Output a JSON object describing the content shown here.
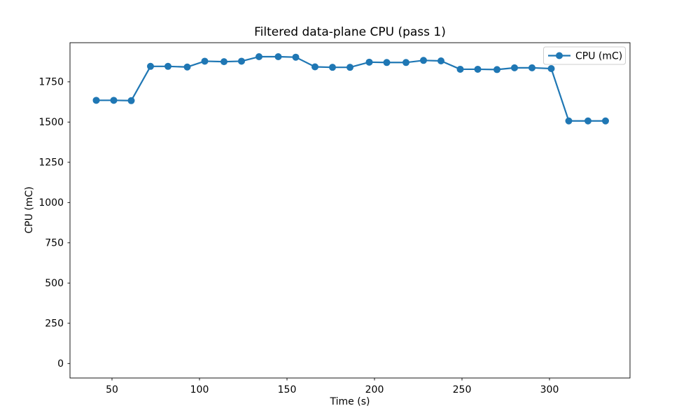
{
  "chart_data": {
    "type": "line",
    "title": "Filtered data-plane CPU (pass 1)",
    "xlabel": "Time (s)",
    "ylabel": "CPU (mC)",
    "xlim": [
      26,
      346
    ],
    "ylim": [
      -90,
      1993
    ],
    "xticks": [
      50,
      100,
      150,
      200,
      250,
      300
    ],
    "yticks": [
      0,
      250,
      500,
      750,
      1000,
      1250,
      1500,
      1750
    ],
    "grid": false,
    "legend": {
      "position": "upper right",
      "entries": [
        "CPU (mC)"
      ]
    },
    "series": [
      {
        "name": "CPU (mC)",
        "color": "#1f77b4",
        "marker": "circle",
        "marker_size": 5,
        "line_width": 2.2,
        "x": [
          41,
          51,
          61,
          72,
          82,
          93,
          103,
          114,
          124,
          134,
          145,
          155,
          166,
          176,
          186,
          197,
          207,
          218,
          228,
          238,
          249,
          259,
          270,
          280,
          290,
          301,
          311,
          322,
          332
        ],
        "y": [
          1635,
          1635,
          1633,
          1846,
          1846,
          1842,
          1878,
          1875,
          1878,
          1906,
          1906,
          1903,
          1843,
          1840,
          1840,
          1872,
          1870,
          1870,
          1883,
          1880,
          1828,
          1828,
          1826,
          1837,
          1837,
          1832,
          1507,
          1507,
          1507
        ]
      }
    ],
    "colors": {
      "axes": "#000000",
      "legend_border": "#cccccc",
      "background": "#ffffff"
    }
  }
}
